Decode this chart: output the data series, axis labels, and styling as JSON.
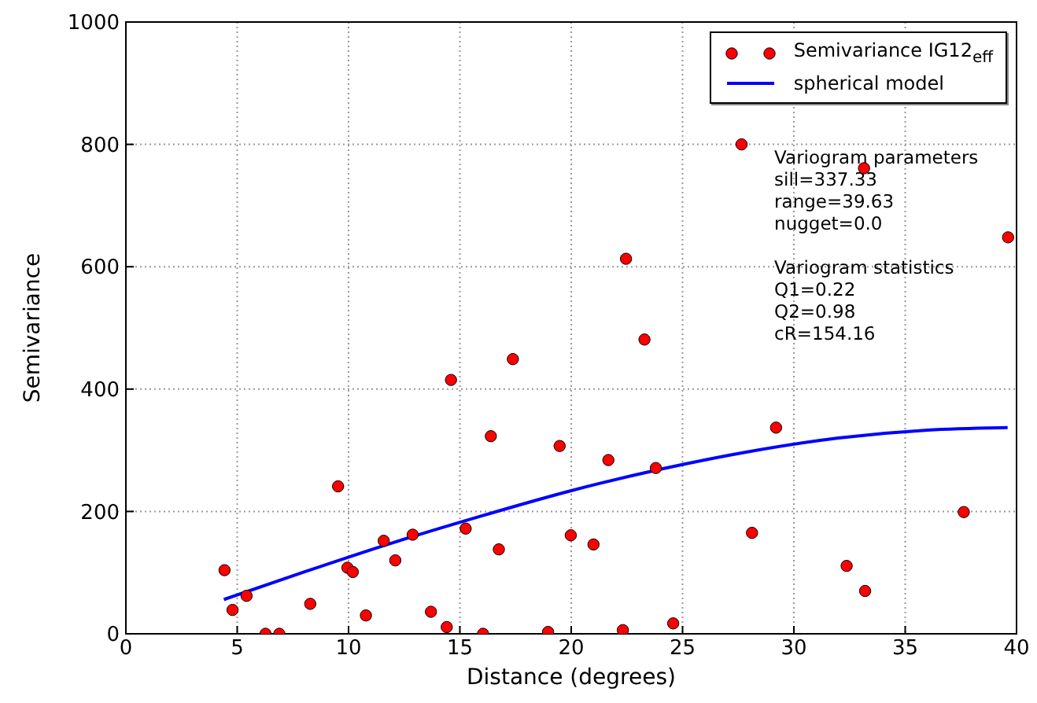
{
  "chart_data": {
    "type": "scatter",
    "xlabel": "Distance (degrees)",
    "ylabel": "Semivariance",
    "xlim": [
      0,
      40
    ],
    "xticks": [
      0,
      5,
      10,
      15,
      20,
      25,
      30,
      35,
      40
    ],
    "ylim": [
      0,
      1000
    ],
    "yticks": [
      0,
      200,
      400,
      600,
      800,
      1000
    ],
    "grid": true,
    "legend": "top right",
    "marker": "circle",
    "series": [
      {
        "name": "Semivariance IG12$_{eff}$",
        "color": "#ff0000",
        "x": [
          4.43,
          4.79,
          5.42,
          6.27,
          6.89,
          8.28,
          9.53,
          9.95,
          10.19,
          10.78,
          11.58,
          12.1,
          12.88,
          13.7,
          14.41,
          14.6,
          15.26,
          16.04,
          16.39,
          16.75,
          17.38,
          18.96,
          19.48,
          19.98,
          21.0,
          21.67,
          22.32,
          22.46,
          23.29,
          23.8,
          24.58,
          27.65,
          28.12,
          29.2,
          32.37,
          33.15,
          33.2,
          37.63,
          39.62
        ],
        "values": [
          104,
          39,
          62,
          0,
          0,
          49,
          241,
          108,
          101,
          30,
          152,
          120,
          162,
          36,
          11,
          415,
          172,
          0,
          323,
          138,
          449,
          3,
          307,
          161,
          146,
          284,
          6,
          613,
          481,
          271,
          17,
          800,
          165,
          337,
          111,
          761,
          70,
          199,
          648
        ]
      },
      {
        "name": "spherical model",
        "type": "line",
        "color": "#0000ff",
        "line_style": "solid",
        "marker": "none",
        "x": [
          4.4,
          8,
          12,
          16,
          20,
          24,
          28,
          32,
          36,
          39.6
        ],
        "values": [
          56,
          101,
          149,
          193,
          234,
          269,
          298,
          320,
          333,
          337
        ]
      }
    ],
    "annotations": [
      "Variogram parameters\nsill=337.33\nrange=39.63\nnugget=0.0",
      "Variogram statistics\nQ1=0.22\nQ2=0.98\ncR=154.16"
    ]
  }
}
